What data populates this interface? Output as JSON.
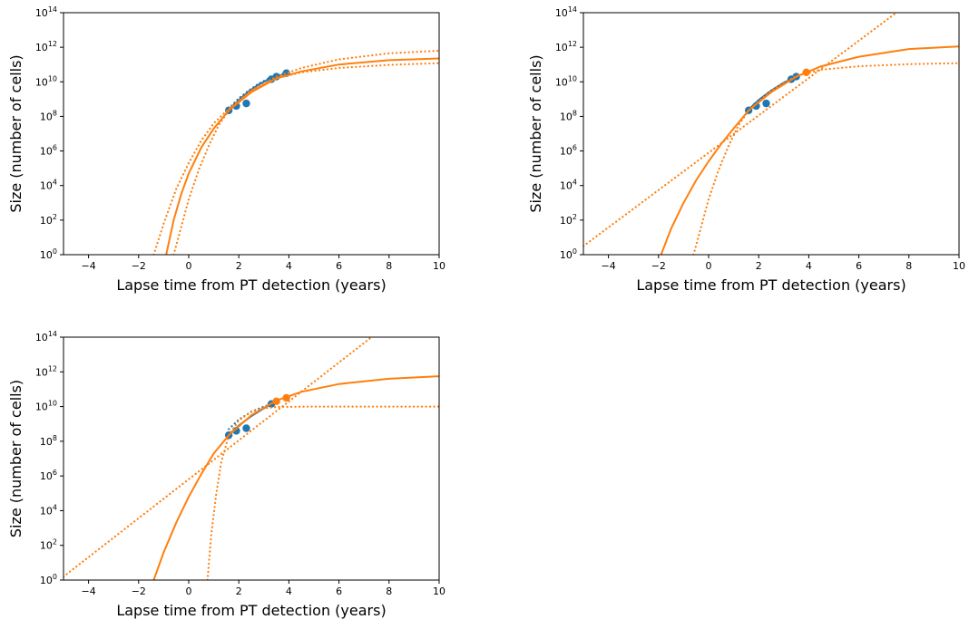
{
  "chart_data": [
    {
      "type": "line",
      "xlabel": "Lapse time from PT detection (years)",
      "ylabel": "Size (number of cells)",
      "xlim": [
        -5,
        10
      ],
      "ylim_log10": [
        0,
        14
      ],
      "yscale": "log",
      "xticks": [
        -4,
        -2,
        0,
        2,
        4,
        6,
        8,
        10
      ],
      "xtick_labels": [
        "−4",
        "−2",
        "0",
        "2",
        "4",
        "6",
        "8",
        "10"
      ],
      "yticks_log10": [
        0,
        2,
        4,
        6,
        8,
        10,
        12,
        14
      ],
      "ytick_base": "10",
      "ytick_exponents": [
        "0",
        "2",
        "4",
        "6",
        "8",
        "10",
        "12",
        "14"
      ],
      "grid": false,
      "colors": {
        "observed": "#1f77b4",
        "fit": "#ff7f0e"
      },
      "series": [
        {
          "role": "observed-points",
          "color": "#1f77b4",
          "style": "marker",
          "x": [
            1.6,
            1.9,
            2.3,
            3.3,
            3.5,
            3.9
          ],
          "y_log10": [
            8.35,
            8.6,
            8.75,
            10.15,
            10.3,
            10.5
          ]
        },
        {
          "role": "fit-line",
          "color": "#1f77b4",
          "style": "solid",
          "x": [
            1.6,
            2.0,
            2.4,
            2.8,
            3.2,
            3.6,
            3.9
          ],
          "y_log10": [
            8.35,
            8.95,
            9.45,
            9.85,
            10.15,
            10.35,
            10.5
          ]
        },
        {
          "role": "fit-line",
          "color": "#1f77b4",
          "style": "dotted",
          "x": [
            1.6,
            2.0,
            2.4,
            2.8,
            3.2,
            3.6,
            3.9
          ],
          "y_log10": [
            8.45,
            9.05,
            9.5,
            9.9,
            10.2,
            10.4,
            10.55
          ]
        },
        {
          "role": "projection",
          "color": "#ff7f0e",
          "style": "solid",
          "x": [
            -0.9,
            -0.6,
            -0.3,
            0.0,
            0.5,
            1.0,
            1.6,
            2.5,
            3.5,
            4.5,
            6.0,
            8.0,
            10.0
          ],
          "y_log10": [
            0.0,
            2.0,
            3.5,
            4.7,
            6.2,
            7.3,
            8.35,
            9.4,
            10.2,
            10.6,
            11.0,
            11.25,
            11.35
          ]
        },
        {
          "role": "projection",
          "color": "#ff7f0e",
          "style": "dotted",
          "x": [
            -1.4,
            -1.0,
            -0.5,
            0.0,
            0.5,
            1.0,
            1.6,
            2.5,
            3.5,
            4.5,
            6.0,
            8.0,
            10.0
          ],
          "y_log10": [
            0.0,
            1.8,
            3.8,
            5.3,
            6.6,
            7.6,
            8.45,
            9.5,
            10.3,
            10.8,
            11.3,
            11.65,
            11.8
          ]
        },
        {
          "role": "projection",
          "color": "#ff7f0e",
          "style": "dotted",
          "x": [
            -0.6,
            -0.3,
            0.0,
            0.4,
            0.8,
            1.2,
            1.6,
            2.5,
            3.5,
            4.5,
            6.0,
            8.0,
            10.0
          ],
          "y_log10": [
            0.0,
            1.6,
            3.2,
            4.9,
            6.3,
            7.5,
            8.35,
            9.5,
            10.2,
            10.55,
            10.8,
            10.98,
            11.08
          ]
        }
      ]
    },
    {
      "type": "line",
      "xlabel": "Lapse time from PT detection (years)",
      "ylabel": "Size (number of cells)",
      "xlim": [
        -5,
        10
      ],
      "ylim_log10": [
        0,
        14
      ],
      "yscale": "log",
      "xticks": [
        -4,
        -2,
        0,
        2,
        4,
        6,
        8,
        10
      ],
      "xtick_labels": [
        "−4",
        "−2",
        "0",
        "2",
        "4",
        "6",
        "8",
        "10"
      ],
      "yticks_log10": [
        0,
        2,
        4,
        6,
        8,
        10,
        12,
        14
      ],
      "ytick_base": "10",
      "ytick_exponents": [
        "0",
        "2",
        "4",
        "6",
        "8",
        "10",
        "12",
        "14"
      ],
      "grid": false,
      "colors": {
        "observed": "#1f77b4",
        "fit": "#ff7f0e"
      },
      "series": [
        {
          "role": "observed-points",
          "color": "#1f77b4",
          "style": "marker",
          "x": [
            1.6,
            1.9,
            2.3,
            3.3,
            3.5
          ],
          "y_log10": [
            8.35,
            8.6,
            8.75,
            10.15,
            10.3
          ]
        },
        {
          "role": "observed-points",
          "color": "#ff7f0e",
          "style": "marker",
          "x": [
            3.9
          ],
          "y_log10": [
            10.55
          ]
        },
        {
          "role": "fit-line",
          "color": "#1f77b4",
          "style": "solid",
          "x": [
            1.6,
            2.0,
            2.5,
            3.0,
            3.5
          ],
          "y_log10": [
            8.4,
            8.95,
            9.5,
            9.95,
            10.3
          ]
        },
        {
          "role": "fit-line",
          "color": "#1f77b4",
          "style": "dotted",
          "x": [
            1.6,
            2.0,
            2.5,
            3.0,
            3.5
          ],
          "y_log10": [
            8.3,
            8.9,
            9.45,
            9.9,
            10.3
          ]
        },
        {
          "role": "projection",
          "color": "#ff7f0e",
          "style": "solid",
          "x": [
            -1.9,
            -1.5,
            -1.0,
            -0.5,
            0.0,
            0.5,
            1.0,
            1.6,
            2.5,
            3.5,
            4.5,
            6.0,
            8.0,
            10.0
          ],
          "y_log10": [
            0.0,
            1.5,
            3.0,
            4.3,
            5.4,
            6.4,
            7.3,
            8.35,
            9.4,
            10.3,
            10.9,
            11.45,
            11.9,
            12.05
          ]
        },
        {
          "role": "projection",
          "color": "#ff7f0e",
          "style": "dotted",
          "x": [
            -5.0,
            7.5
          ],
          "y_log10": [
            0.5,
            14.0
          ]
        },
        {
          "role": "projection",
          "color": "#ff7f0e",
          "style": "dotted",
          "x": [
            -0.6,
            -0.3,
            0.0,
            0.4,
            0.8,
            1.2,
            1.6,
            2.5,
            3.5,
            4.5,
            6.0,
            8.0,
            10.0
          ],
          "y_log10": [
            0.0,
            1.6,
            3.2,
            4.9,
            6.3,
            7.5,
            8.35,
            9.5,
            10.35,
            10.7,
            10.9,
            11.02,
            11.08
          ]
        }
      ]
    },
    {
      "type": "line",
      "xlabel": "Lapse time from PT detection (years)",
      "ylabel": "Size (number of cells)",
      "xlim": [
        -5,
        10
      ],
      "ylim_log10": [
        0,
        14
      ],
      "yscale": "log",
      "xticks": [
        -4,
        -2,
        0,
        2,
        4,
        6,
        8,
        10
      ],
      "xtick_labels": [
        "−4",
        "−2",
        "0",
        "2",
        "4",
        "6",
        "8",
        "10"
      ],
      "yticks_log10": [
        0,
        2,
        4,
        6,
        8,
        10,
        12,
        14
      ],
      "ytick_base": "10",
      "ytick_exponents": [
        "0",
        "2",
        "4",
        "6",
        "8",
        "10",
        "12",
        "14"
      ],
      "grid": false,
      "colors": {
        "observed": "#1f77b4",
        "fit": "#ff7f0e"
      },
      "series": [
        {
          "role": "observed-points",
          "color": "#1f77b4",
          "style": "marker",
          "x": [
            1.6,
            1.9,
            2.3,
            3.3
          ],
          "y_log10": [
            8.35,
            8.6,
            8.75,
            10.15
          ]
        },
        {
          "role": "observed-points",
          "color": "#ff7f0e",
          "style": "marker",
          "x": [
            3.5,
            3.9
          ],
          "y_log10": [
            10.3,
            10.5
          ]
        },
        {
          "role": "fit-line",
          "color": "#1f77b4",
          "style": "solid",
          "x": [
            1.6,
            2.0,
            2.5,
            3.0,
            3.3
          ],
          "y_log10": [
            8.35,
            8.9,
            9.45,
            9.9,
            10.15
          ]
        },
        {
          "role": "fit-line",
          "color": "#1f77b4",
          "style": "dotted",
          "x": [
            1.6,
            2.0,
            2.5,
            3.0,
            3.3
          ],
          "y_log10": [
            8.7,
            9.25,
            9.7,
            10.0,
            10.15
          ]
        },
        {
          "role": "projection",
          "color": "#ff7f0e",
          "style": "solid",
          "x": [
            -1.4,
            -1.0,
            -0.5,
            0.0,
            0.5,
            1.0,
            1.6,
            2.5,
            3.5,
            4.5,
            6.0,
            8.0,
            10.0
          ],
          "y_log10": [
            0.0,
            1.6,
            3.3,
            4.8,
            6.1,
            7.3,
            8.35,
            9.5,
            10.35,
            10.85,
            11.3,
            11.6,
            11.75
          ]
        },
        {
          "role": "projection",
          "color": "#ff7f0e",
          "style": "dotted",
          "x": [
            -5.0,
            7.3
          ],
          "y_log10": [
            0.2,
            14.0
          ]
        },
        {
          "role": "projection",
          "color": "#ff7f0e",
          "style": "dotted",
          "x": [
            0.75,
            0.9,
            1.1,
            1.3,
            1.6,
            2.0,
            2.5,
            3.0,
            3.5,
            5.0,
            8.0,
            10.0
          ],
          "y_log10": [
            0.0,
            2.6,
            5.0,
            6.8,
            8.35,
            9.2,
            9.7,
            9.9,
            9.98,
            10.0,
            10.0,
            10.0
          ]
        }
      ]
    }
  ]
}
